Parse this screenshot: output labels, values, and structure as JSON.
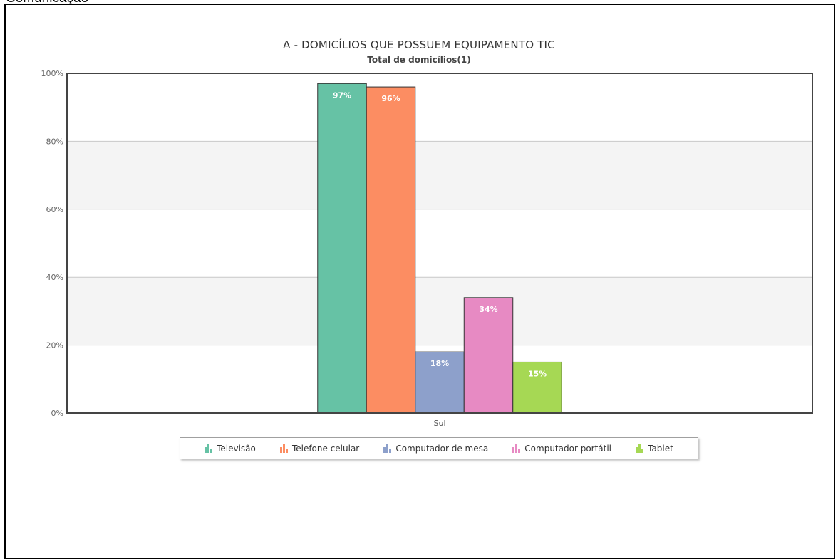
{
  "page": {
    "top_cut_text": "Comunicação"
  },
  "chart_data": {
    "type": "bar",
    "title": "A - DOMICÍLIOS QUE POSSUEM EQUIPAMENTO TIC",
    "subtitle": "Total de domicílios(1)",
    "categories": [
      "Sul"
    ],
    "series": [
      {
        "name": "Televisão",
        "values": [
          97
        ],
        "color": "#66c2a5",
        "label": "97%"
      },
      {
        "name": "Telefone celular",
        "values": [
          96
        ],
        "color": "#fc8d62",
        "label": "96%"
      },
      {
        "name": "Computador de mesa",
        "values": [
          18
        ],
        "color": "#8da0cb",
        "label": "18%"
      },
      {
        "name": "Computador portátil",
        "values": [
          34
        ],
        "color": "#e78ac3",
        "label": "34%"
      },
      {
        "name": "Tablet",
        "values": [
          15
        ],
        "color": "#a6d854",
        "label": "15%"
      }
    ],
    "ylim": [
      0,
      100
    ],
    "yticks": [
      0,
      20,
      40,
      60,
      80,
      100
    ],
    "ytick_labels": [
      "0%",
      "20%",
      "40%",
      "60%",
      "80%",
      "100%"
    ],
    "grid": true,
    "alternate_bands": true,
    "legend_position": "bottom"
  }
}
